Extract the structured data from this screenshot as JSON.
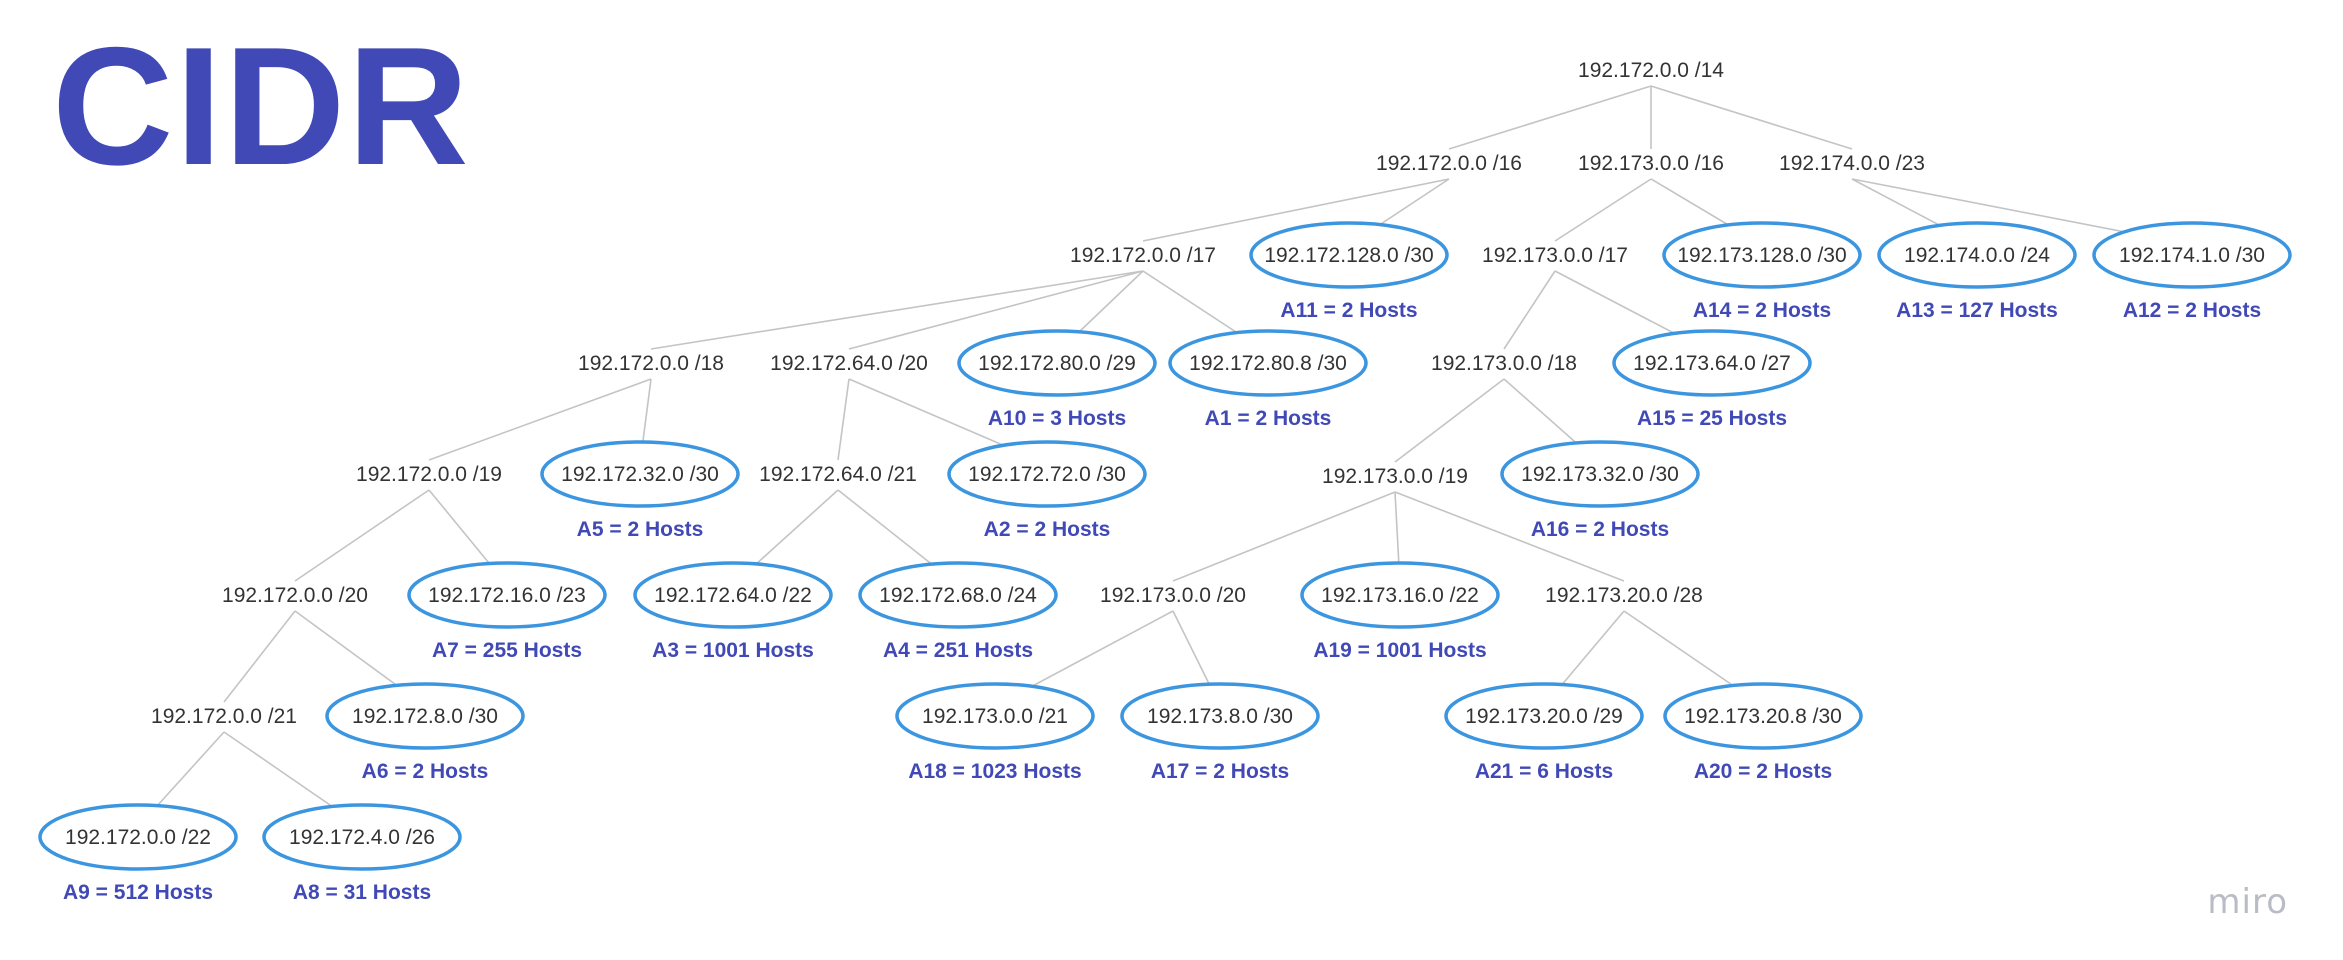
{
  "title": "CIDR",
  "watermark": "miro",
  "colors": {
    "accent": "#4049b5",
    "ellipse_stroke": "#3b95df",
    "edge": "#c4c4c4",
    "text": "#333333"
  },
  "nodes": [
    {
      "id": "n1",
      "label": "192.172.0.0 /14"
    },
    {
      "id": "n2",
      "label": "192.172.0.0 /16"
    },
    {
      "id": "n3",
      "label": "192.173.0.0 /16"
    },
    {
      "id": "n4",
      "label": "192.174.0.0 /23"
    },
    {
      "id": "n5",
      "label": "192.172.0.0 /17"
    },
    {
      "id": "n6",
      "label": "192.172.128.0 /30",
      "allocation": "A11 = 2 Hosts"
    },
    {
      "id": "n7",
      "label": "192.173.0.0 /17"
    },
    {
      "id": "n8",
      "label": "192.173.128.0 /30",
      "allocation": "A14 = 2 Hosts"
    },
    {
      "id": "n9",
      "label": "192.174.0.0 /24",
      "allocation": "A13 = 127 Hosts"
    },
    {
      "id": "n10",
      "label": "192.174.1.0 /30",
      "allocation": "A12 = 2 Hosts"
    },
    {
      "id": "n11",
      "label": "192.172.0.0 /18"
    },
    {
      "id": "n12",
      "label": "192.172.64.0 /20"
    },
    {
      "id": "n13",
      "label": "192.172.80.0 /29",
      "allocation": "A10 = 3 Hosts"
    },
    {
      "id": "n14",
      "label": "192.172.80.8 /30",
      "allocation": "A1 = 2 Hosts"
    },
    {
      "id": "n15",
      "label": "192.173.0.0 /18"
    },
    {
      "id": "n16",
      "label": "192.173.64.0 /27",
      "allocation": "A15 = 25 Hosts"
    },
    {
      "id": "n17",
      "label": "192.172.0.0 /19"
    },
    {
      "id": "n18",
      "label": "192.172.32.0 /30",
      "allocation": "A5 = 2 Hosts"
    },
    {
      "id": "n19",
      "label": "192.172.64.0 /21"
    },
    {
      "id": "n20",
      "label": "192.172.72.0 /30",
      "allocation": "A2 = 2 Hosts"
    },
    {
      "id": "n21",
      "label": "192.173.0.0 /19"
    },
    {
      "id": "n22",
      "label": "192.173.32.0 /30",
      "allocation": "A16 = 2 Hosts"
    },
    {
      "id": "n23",
      "label": "192.172.0.0 /20"
    },
    {
      "id": "n24",
      "label": "192.172.16.0 /23",
      "allocation": "A7 = 255 Hosts"
    },
    {
      "id": "n25",
      "label": "192.172.64.0 /22",
      "allocation": "A3 = 1001 Hosts"
    },
    {
      "id": "n26",
      "label": "192.172.68.0 /24",
      "allocation": "A4 = 251 Hosts"
    },
    {
      "id": "n27",
      "label": "192.173.0.0 /20"
    },
    {
      "id": "n28",
      "label": "192.173.16.0 /22",
      "allocation": "A19 = 1001 Hosts"
    },
    {
      "id": "n29",
      "label": "192.173.20.0 /28"
    },
    {
      "id": "n30",
      "label": "192.172.0.0 /21"
    },
    {
      "id": "n31",
      "label": "192.172.8.0 /30",
      "allocation": "A6 = 2 Hosts"
    },
    {
      "id": "n32",
      "label": "192.173.0.0 /21",
      "allocation": "A18 = 1023 Hosts"
    },
    {
      "id": "n33",
      "label": "192.173.8.0 /30",
      "allocation": "A17 = 2 Hosts"
    },
    {
      "id": "n34",
      "label": "192.173.20.0 /29",
      "allocation": "A21 = 6 Hosts"
    },
    {
      "id": "n35",
      "label": "192.173.20.8 /30",
      "allocation": "A20 = 2 Hosts"
    },
    {
      "id": "n36",
      "label": "192.172.0.0 /22",
      "allocation": "A9 = 512 Hosts"
    },
    {
      "id": "n37",
      "label": "192.172.4.0 /26",
      "allocation": "A8 = 31 Hosts"
    }
  ],
  "edges": [
    [
      "n1",
      "n2"
    ],
    [
      "n1",
      "n3"
    ],
    [
      "n1",
      "n4"
    ],
    [
      "n2",
      "n5"
    ],
    [
      "n2",
      "n6"
    ],
    [
      "n3",
      "n7"
    ],
    [
      "n3",
      "n8"
    ],
    [
      "n4",
      "n9"
    ],
    [
      "n4",
      "n10"
    ],
    [
      "n5",
      "n11"
    ],
    [
      "n5",
      "n12"
    ],
    [
      "n5",
      "n13"
    ],
    [
      "n5",
      "n14"
    ],
    [
      "n7",
      "n15"
    ],
    [
      "n7",
      "n16"
    ],
    [
      "n11",
      "n17"
    ],
    [
      "n11",
      "n18"
    ],
    [
      "n12",
      "n19"
    ],
    [
      "n12",
      "n20"
    ],
    [
      "n15",
      "n21"
    ],
    [
      "n15",
      "n22"
    ],
    [
      "n17",
      "n23"
    ],
    [
      "n17",
      "n24"
    ],
    [
      "n19",
      "n25"
    ],
    [
      "n19",
      "n26"
    ],
    [
      "n21",
      "n27"
    ],
    [
      "n21",
      "n28"
    ],
    [
      "n21",
      "n29"
    ],
    [
      "n23",
      "n30"
    ],
    [
      "n23",
      "n31"
    ],
    [
      "n27",
      "n32"
    ],
    [
      "n27",
      "n33"
    ],
    [
      "n29",
      "n34"
    ],
    [
      "n29",
      "n35"
    ],
    [
      "n30",
      "n36"
    ],
    [
      "n30",
      "n37"
    ]
  ]
}
